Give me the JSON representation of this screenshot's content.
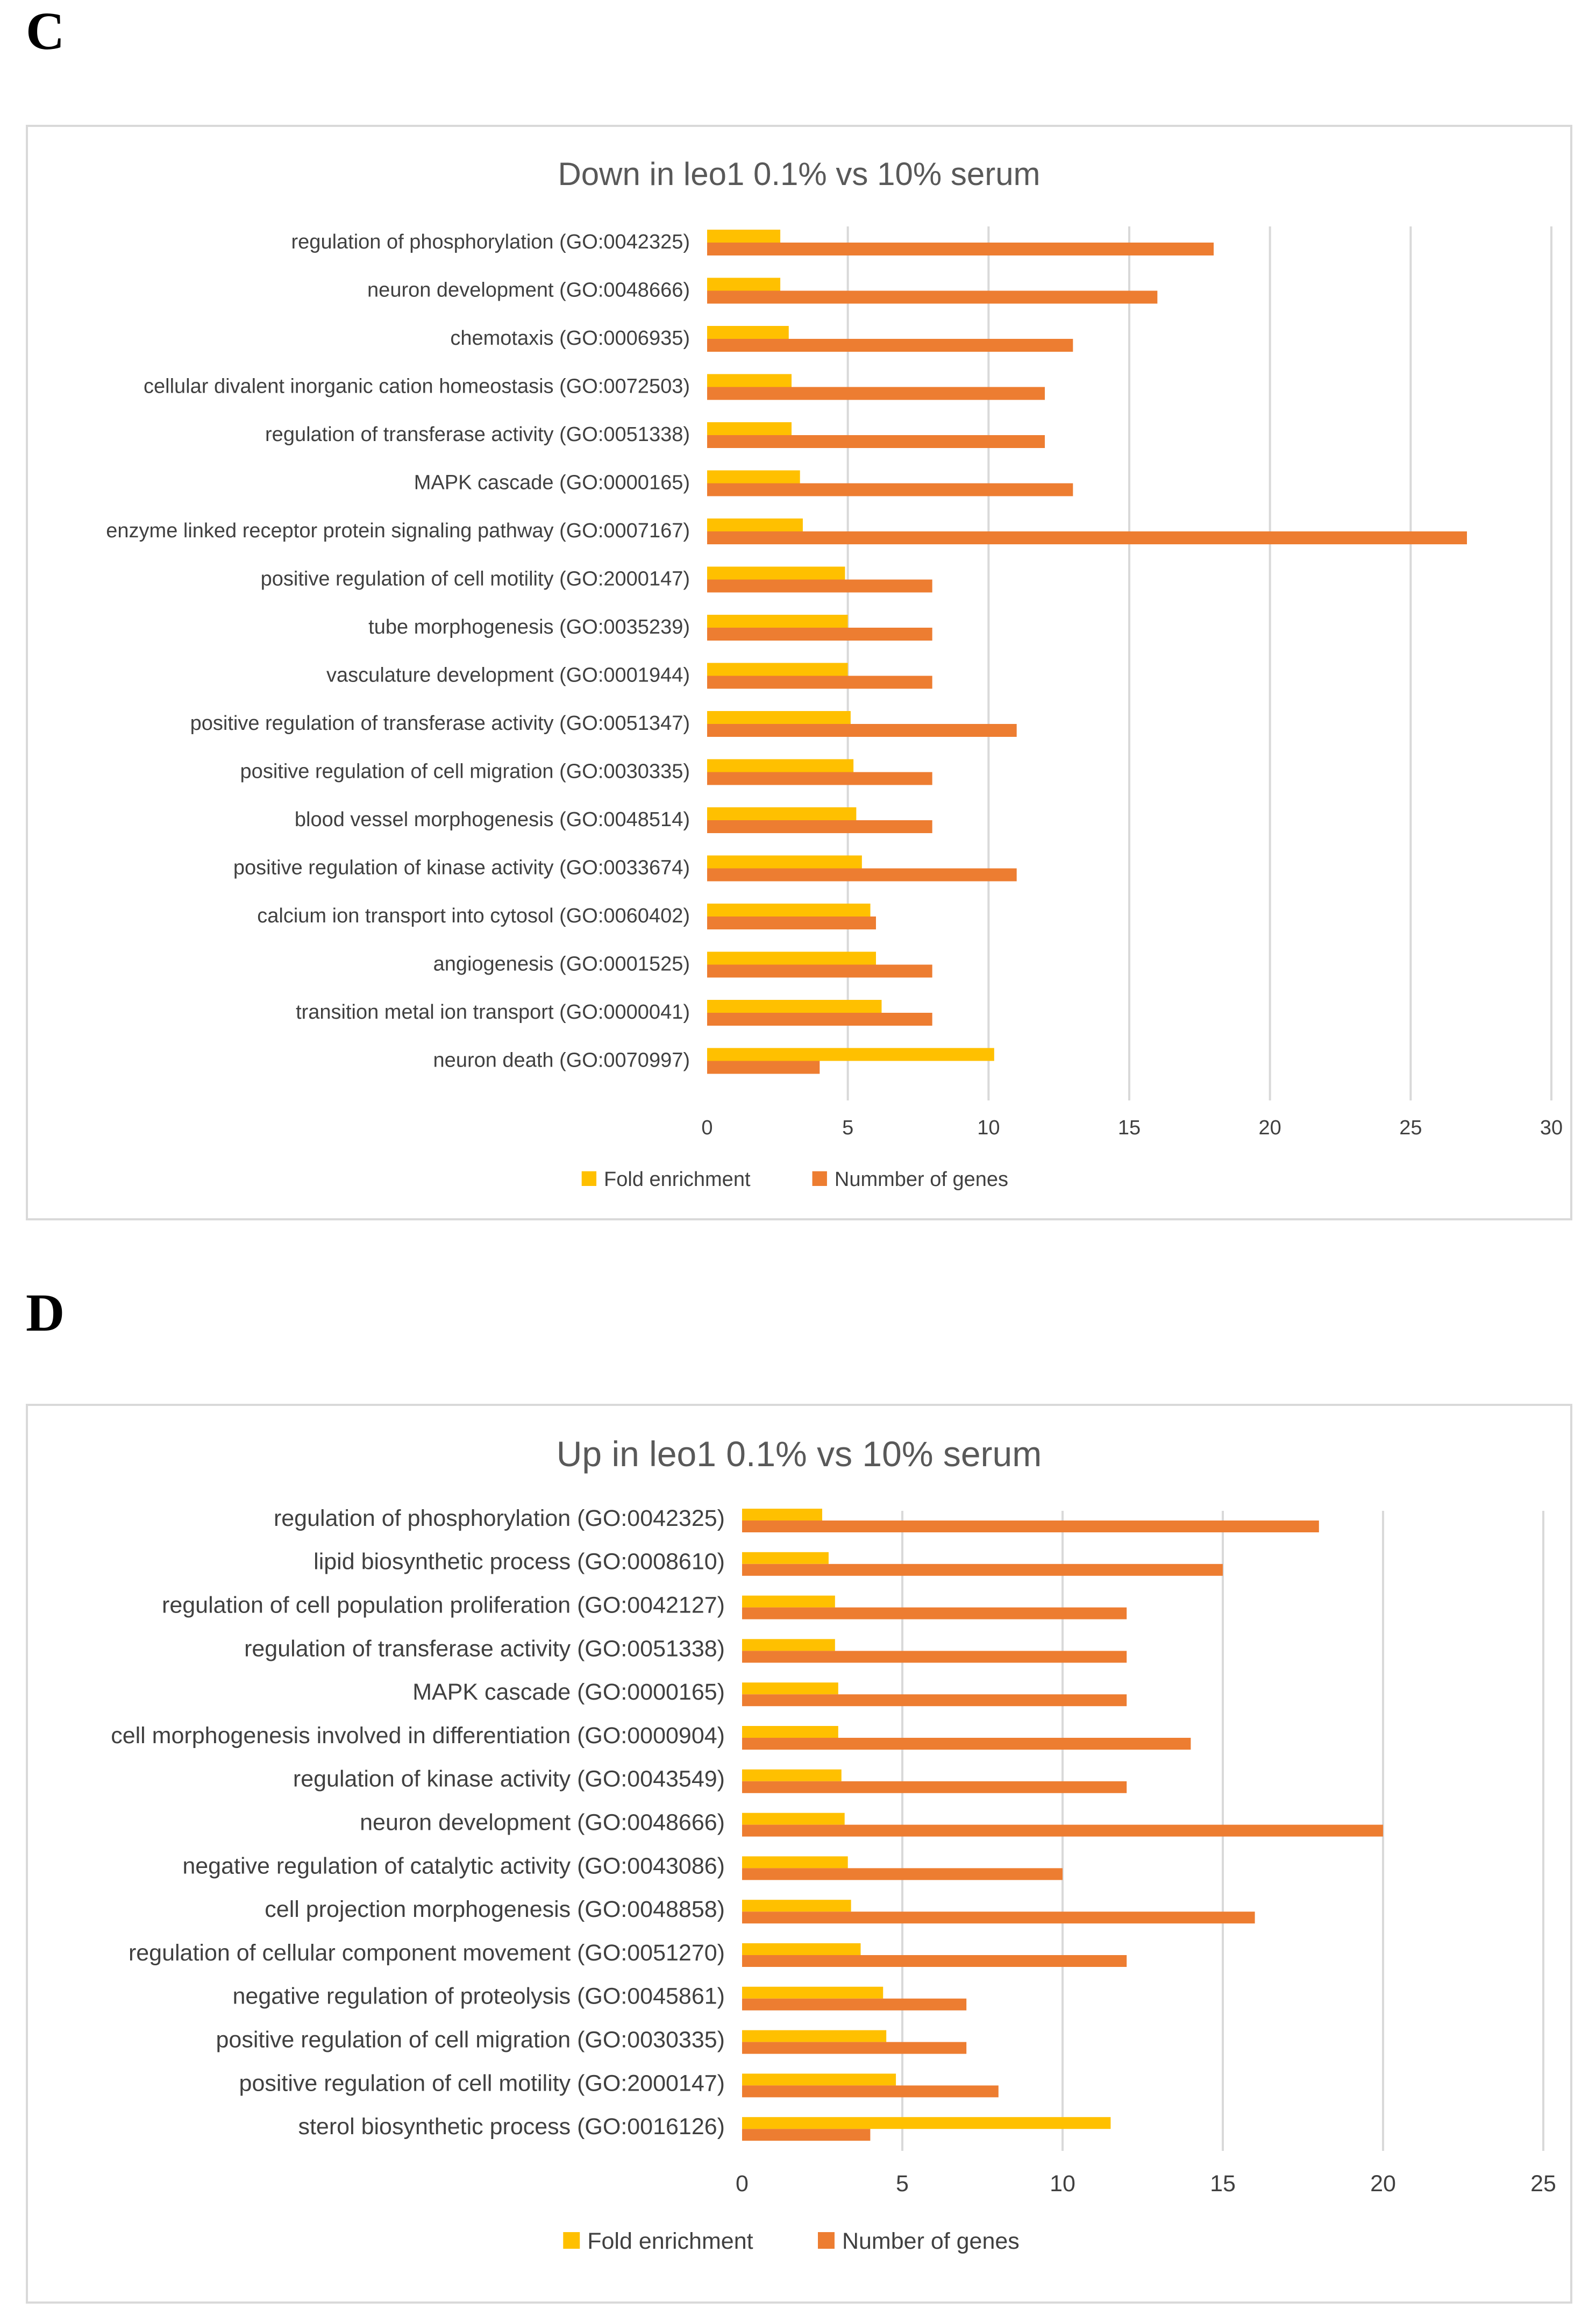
{
  "panels": [
    {
      "letter": "C"
    },
    {
      "letter": "D"
    }
  ],
  "colors": {
    "fold": "#ffc000",
    "genes": "#ed7d31",
    "grid": "#d9d9d9",
    "text": "#404040",
    "title": "#595959"
  },
  "chart_data": [
    {
      "type": "bar",
      "orientation": "horizontal",
      "title": "Down in leo1 0.1% vs 10% serum",
      "categories": [
        "regulation of phosphorylation (GO:0042325)",
        "neuron development (GO:0048666)",
        "chemotaxis (GO:0006935)",
        "cellular divalent inorganic cation homeostasis (GO:0072503)",
        "regulation of transferase activity (GO:0051338)",
        "MAPK cascade (GO:0000165)",
        "enzyme linked receptor protein signaling pathway (GO:0007167)",
        "positive regulation of cell motility (GO:2000147)",
        "tube morphogenesis (GO:0035239)",
        "vasculature development (GO:0001944)",
        "positive regulation of transferase activity (GO:0051347)",
        "positive regulation of cell migration (GO:0030335)",
        "blood vessel morphogenesis (GO:0048514)",
        "positive regulation of kinase activity (GO:0033674)",
        "calcium ion transport into cytosol (GO:0060402)",
        "angiogenesis (GO:0001525)",
        "transition metal ion transport (GO:0000041)",
        "neuron death (GO:0070997)"
      ],
      "series": [
        {
          "name": "Fold enrichment",
          "values": [
            2.6,
            2.6,
            2.9,
            3.0,
            3.0,
            3.3,
            3.4,
            4.9,
            5.0,
            5.0,
            5.1,
            5.2,
            5.3,
            5.5,
            5.8,
            6.0,
            6.2,
            10.2
          ]
        },
        {
          "name": "Nummber of genes",
          "values": [
            18,
            16,
            13,
            12,
            12,
            13,
            27,
            8,
            8,
            8,
            11,
            8,
            8,
            11,
            6,
            8,
            8,
            4
          ]
        }
      ],
      "xlim": [
        0,
        30
      ],
      "xticks": [
        "0",
        "5",
        "10",
        "15",
        "20",
        "25",
        "30"
      ],
      "legend_position": "bottom"
    },
    {
      "type": "bar",
      "orientation": "horizontal",
      "title": "Up in leo1 0.1% vs 10% serum",
      "categories": [
        "regulation of phosphorylation (GO:0042325)",
        "lipid biosynthetic process (GO:0008610)",
        "regulation of cell population proliferation (GO:0042127)",
        "regulation of transferase activity (GO:0051338)",
        "MAPK cascade (GO:0000165)",
        "cell morphogenesis involved in differentiation (GO:0000904)",
        "regulation of kinase activity (GO:0043549)",
        "neuron development (GO:0048666)",
        "negative regulation of catalytic activity (GO:0043086)",
        "cell projection morphogenesis (GO:0048858)",
        "regulation of cellular component movement (GO:0051270)",
        "negative regulation of proteolysis (GO:0045861)",
        "positive regulation of cell migration (GO:0030335)",
        "positive regulation of cell motility (GO:2000147)",
        "sterol biosynthetic process (GO:0016126)"
      ],
      "series": [
        {
          "name": "Fold enrichment",
          "values": [
            2.5,
            2.7,
            2.9,
            2.9,
            3.0,
            3.0,
            3.1,
            3.2,
            3.3,
            3.4,
            3.7,
            4.4,
            4.5,
            4.8,
            11.5
          ]
        },
        {
          "name": "Number of genes",
          "values": [
            18,
            15,
            12,
            12,
            12,
            14,
            12,
            20,
            10,
            16,
            12,
            7,
            7,
            8,
            4
          ]
        }
      ],
      "xlim": [
        0,
        25
      ],
      "xticks": [
        "0",
        "5",
        "10",
        "15",
        "20",
        "25"
      ],
      "legend_position": "bottom"
    }
  ]
}
